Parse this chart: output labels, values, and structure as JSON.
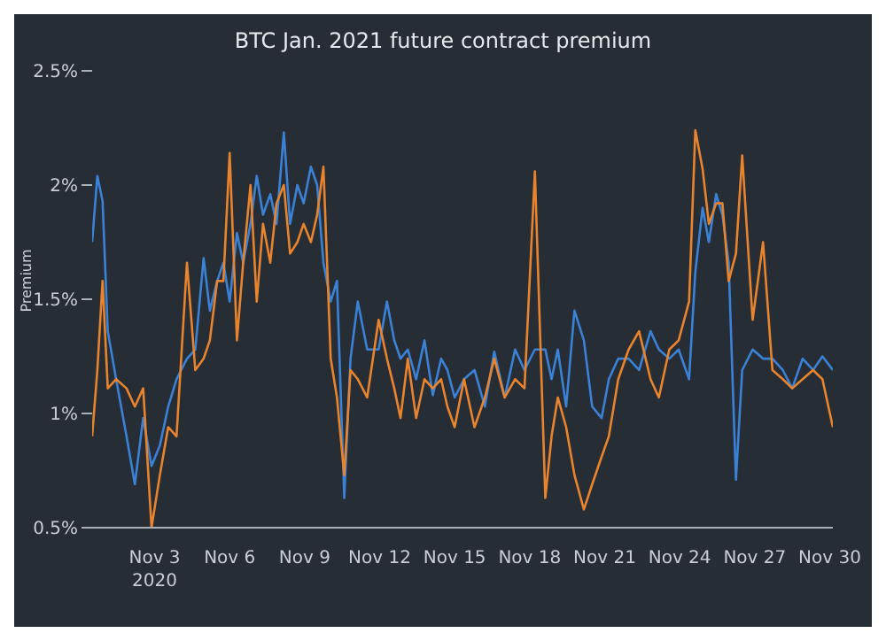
{
  "chart_data": {
    "type": "line",
    "title": "BTC Jan. 2021 future contract premium",
    "ylabel": "Premium",
    "x": [
      "2020-10-31T12:00",
      "2020-10-31T17:00",
      "2020-10-31T22:00",
      "2020-11-01T03:00",
      "2020-11-01T11:00",
      "2020-11-01T21:00",
      "2020-11-02T05:00",
      "2020-11-02T13:00",
      "2020-11-02T21:00",
      "2020-11-03T05:00",
      "2020-11-03T13:00",
      "2020-11-03T21:00",
      "2020-11-04T07:00",
      "2020-11-04T15:00",
      "2020-11-04T23:00",
      "2020-11-05T05:00",
      "2020-11-05T12:00",
      "2020-11-05T18:00",
      "2020-11-06T00:00",
      "2020-11-06T07:00",
      "2020-11-06T13:00",
      "2020-11-06T20:00",
      "2020-11-07T02:00",
      "2020-11-07T08:00",
      "2020-11-07T15:00",
      "2020-11-07T21:00",
      "2020-11-08T04:00",
      "2020-11-08T10:00",
      "2020-11-08T17:00",
      "2020-11-08T23:00",
      "2020-11-09T06:00",
      "2020-11-09T12:00",
      "2020-11-09T18:00",
      "2020-11-10T01:00",
      "2020-11-10T07:00",
      "2020-11-10T14:00",
      "2020-11-10T20:00",
      "2020-11-11T03:00",
      "2020-11-11T12:00",
      "2020-11-11T23:00",
      "2020-11-12T07:00",
      "2020-11-12T14:00",
      "2020-11-12T20:00",
      "2020-11-13T03:00",
      "2020-11-13T11:00",
      "2020-11-13T19:00",
      "2020-11-14T03:00",
      "2020-11-14T11:00",
      "2020-11-14T17:00",
      "2020-11-15T00:00",
      "2020-11-15T09:00",
      "2020-11-15T19:00",
      "2020-11-16T05:00",
      "2020-11-16T14:00",
      "2020-11-17T00:00",
      "2020-11-17T10:00",
      "2020-11-17T19:00",
      "2020-11-18T05:00",
      "2020-11-18T15:00",
      "2020-11-18T21:00",
      "2020-11-19T03:00",
      "2020-11-19T11:00",
      "2020-11-19T19:00",
      "2020-11-20T04:00",
      "2020-11-20T12:00",
      "2020-11-20T21:00",
      "2020-11-21T04:00",
      "2020-11-21T13:00",
      "2020-11-21T23:00",
      "2020-11-22T09:00",
      "2020-11-22T20:00",
      "2020-11-23T04:00",
      "2020-11-23T14:00",
      "2020-11-23T23:00",
      "2020-11-24T09:00",
      "2020-11-24T15:00",
      "2020-11-24T22:00",
      "2020-11-25T04:00",
      "2020-11-25T11:00",
      "2020-11-25T17:00",
      "2020-11-25T23:00",
      "2020-11-26T06:00",
      "2020-11-26T12:00",
      "2020-11-26T22:00",
      "2020-11-27T08:00",
      "2020-11-27T17:00",
      "2020-11-28T03:00",
      "2020-11-28T12:00",
      "2020-11-28T22:00",
      "2020-11-29T08:00",
      "2020-11-29T17:00",
      "2020-11-30T03:00"
    ],
    "series": [
      {
        "color": "#3b82d6",
        "values": [
          1.75,
          2.04,
          1.93,
          1.36,
          1.15,
          0.9,
          0.69,
          0.98,
          0.77,
          0.86,
          1.03,
          1.15,
          1.24,
          1.28,
          1.68,
          1.45,
          1.58,
          1.66,
          1.49,
          1.79,
          1.66,
          1.83,
          2.04,
          1.87,
          1.96,
          1.83,
          2.23,
          1.83,
          2.0,
          1.92,
          2.08,
          2.0,
          1.66,
          1.49,
          1.58,
          0.63,
          1.24,
          1.49,
          1.28,
          1.28,
          1.49,
          1.32,
          1.24,
          1.28,
          1.15,
          1.32,
          1.08,
          1.24,
          1.19,
          1.07,
          1.15,
          1.19,
          1.03,
          1.27,
          1.07,
          1.28,
          1.19,
          1.28,
          1.28,
          1.15,
          1.28,
          1.03,
          1.45,
          1.32,
          1.03,
          0.98,
          1.15,
          1.24,
          1.24,
          1.19,
          1.36,
          1.28,
          1.24,
          1.28,
          1.15,
          1.62,
          1.9,
          1.75,
          1.96,
          1.87,
          1.66,
          0.71,
          1.19,
          1.28,
          1.24,
          1.24,
          1.19,
          1.11,
          1.24,
          1.19,
          1.25,
          1.19
        ]
      },
      {
        "color": "#e8832e",
        "values": [
          0.9,
          1.19,
          1.58,
          1.11,
          1.15,
          1.11,
          1.03,
          1.11,
          0.5,
          0.73,
          0.94,
          0.9,
          1.66,
          1.19,
          1.24,
          1.32,
          1.58,
          1.58,
          2.14,
          1.32,
          1.66,
          2.0,
          1.49,
          1.83,
          1.66,
          1.92,
          2.0,
          1.7,
          1.75,
          1.83,
          1.75,
          1.87,
          2.08,
          1.24,
          1.07,
          0.73,
          1.19,
          1.15,
          1.07,
          1.41,
          1.24,
          1.11,
          0.98,
          1.24,
          0.98,
          1.15,
          1.11,
          1.15,
          1.03,
          0.94,
          1.15,
          0.94,
          1.07,
          1.24,
          1.07,
          1.15,
          1.11,
          2.06,
          0.63,
          0.9,
          1.07,
          0.94,
          0.73,
          0.58,
          0.69,
          0.81,
          0.9,
          1.15,
          1.28,
          1.36,
          1.15,
          1.07,
          1.28,
          1.32,
          1.49,
          2.24,
          2.07,
          1.83,
          1.92,
          1.92,
          1.58,
          1.7,
          2.13,
          1.41,
          1.75,
          1.19,
          1.15,
          1.11,
          1.15,
          1.19,
          1.15,
          0.94
        ]
      }
    ],
    "xlim": [
      "2020-10-31T12:00",
      "2020-11-30T03:00"
    ],
    "xticks": [
      {
        "value": "2020-11-03",
        "label": "Nov 3\n2020"
      },
      {
        "value": "2020-11-06",
        "label": "Nov 6"
      },
      {
        "value": "2020-11-09",
        "label": "Nov 9"
      },
      {
        "value": "2020-11-12",
        "label": "Nov 12"
      },
      {
        "value": "2020-11-15",
        "label": "Nov 15"
      },
      {
        "value": "2020-11-18",
        "label": "Nov 18"
      },
      {
        "value": "2020-11-21",
        "label": "Nov 21"
      },
      {
        "value": "2020-11-24",
        "label": "Nov 24"
      },
      {
        "value": "2020-11-27",
        "label": "Nov 27"
      },
      {
        "value": "2020-11-30",
        "label": "Nov 30"
      }
    ],
    "ylim": [
      0.5,
      2.5
    ],
    "yticks": [
      {
        "value": 0.5,
        "label": "0.5%"
      },
      {
        "value": 1,
        "label": "1%"
      },
      {
        "value": 1.5,
        "label": "1.5%"
      },
      {
        "value": 2,
        "label": "2%"
      },
      {
        "value": 2.5,
        "label": "2.5%"
      }
    ],
    "grid": false,
    "legend": false,
    "marker": "none",
    "line_style": "solid"
  }
}
